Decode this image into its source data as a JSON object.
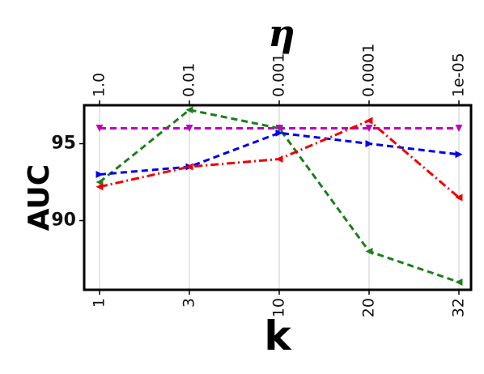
{
  "chart_data": {
    "type": "line",
    "xlabel": "k",
    "x2label": "η",
    "ylabel": "AUC",
    "categories": [
      "1",
      "3",
      "10",
      "20",
      "32"
    ],
    "top_categories": [
      "1.0",
      "0.01",
      "0.001",
      "0.0001",
      "1e-05"
    ],
    "y_ticks": [
      90,
      95
    ],
    "ylim": [
      85.5,
      97.5
    ],
    "grid": "vertical",
    "legend": "none",
    "series": [
      {
        "color": "#1a7f1a",
        "dash": "8,5",
        "marker": "triangle-left",
        "values": [
          92.5,
          97.2,
          96.0,
          88.0,
          86.0
        ]
      },
      {
        "color": "#c000c0",
        "dash": "8,5",
        "marker": "triangle-down",
        "values": [
          96.0,
          96.0,
          96.0,
          96.0,
          96.0
        ]
      },
      {
        "color": "#0000ee",
        "dash": "8,5",
        "marker": "triangle-right",
        "values": [
          93.0,
          93.5,
          95.7,
          95.0,
          94.3
        ]
      },
      {
        "color": "#ee0000",
        "dash": "10,4,2,4",
        "marker": "triangle-left",
        "values": [
          92.2,
          93.5,
          94.0,
          96.5,
          91.5
        ]
      }
    ]
  }
}
